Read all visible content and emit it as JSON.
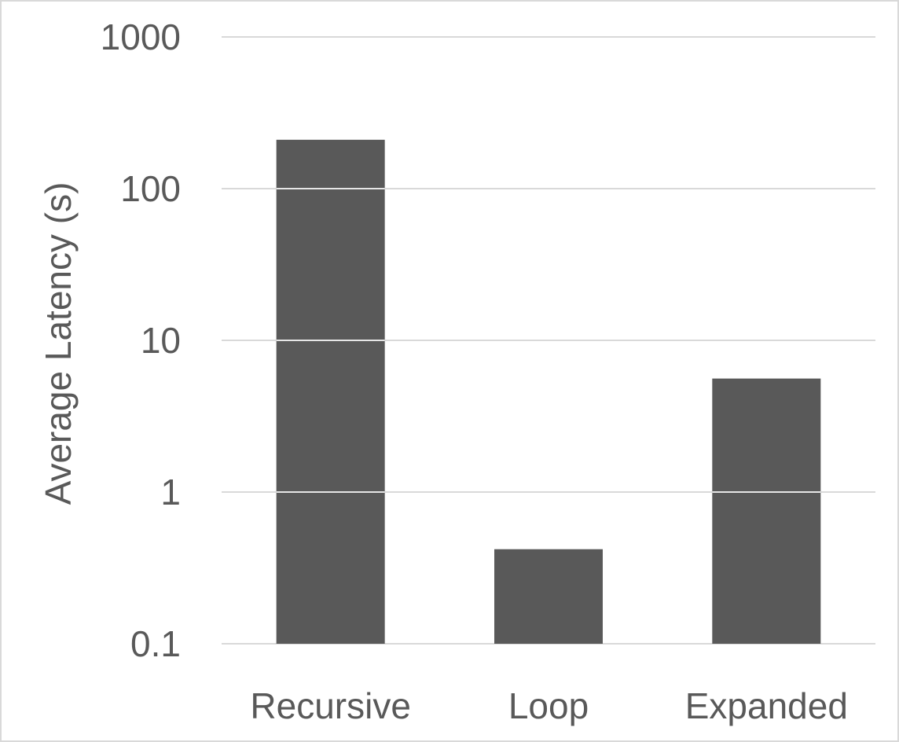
{
  "chart_data": {
    "type": "bar",
    "title": "",
    "xlabel": "",
    "ylabel": "Average Latency (s)",
    "y_scale": "log",
    "ylim": [
      0.1,
      1000
    ],
    "y_ticks": [
      0.1,
      1,
      10,
      100,
      1000
    ],
    "y_tick_labels": [
      "0.1",
      "1",
      "10",
      "100",
      "1000"
    ],
    "categories": [
      "Recursive",
      "Loop",
      "Expanded"
    ],
    "values": [
      210,
      0.42,
      5.6
    ],
    "bar_color": "#595959",
    "grid": true,
    "legend": "none"
  }
}
